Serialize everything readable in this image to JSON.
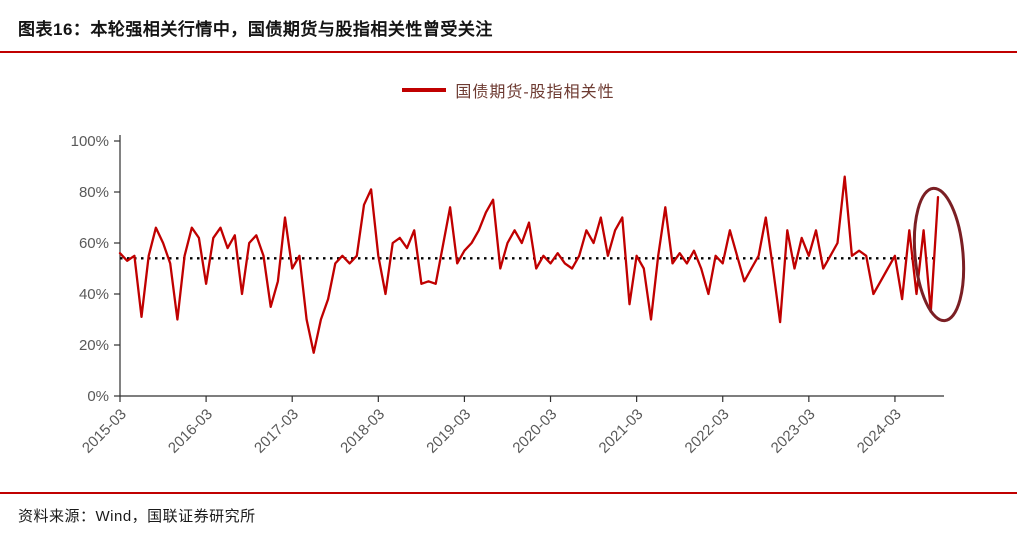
{
  "header": {
    "title": "图表16：本轮强相关行情中，国债期货与股指相关性曾受关注"
  },
  "legend": {
    "label": "国债期货-股指相关性"
  },
  "footer": {
    "source": "资料来源：Wind，国联证券研究所"
  },
  "colors": {
    "line": "#c00000",
    "divider": "#c00000",
    "avg_line": "#000000",
    "ellipse": "#7b1f24",
    "axis": "#303030",
    "axis_text": "#595959",
    "legend_text": "#6d3a31"
  },
  "chart_data": {
    "type": "line",
    "title": "图表16：本轮强相关行情中，国债期货与股指相关性曾受关注",
    "legend_position": "top-center",
    "grid": false,
    "ylim": [
      0,
      100
    ],
    "y_ticks": [
      0,
      20,
      40,
      60,
      80,
      100
    ],
    "y_tick_suffix": "%",
    "x_tick_labels": [
      "2015-03",
      "2016-03",
      "2017-03",
      "2018-03",
      "2019-03",
      "2020-03",
      "2021-03",
      "2022-03",
      "2023-03",
      "2024-03"
    ],
    "x_months_per_tick": 12,
    "x_start": "2015-03",
    "x_end": "2024-09",
    "average_line": 54,
    "highlight_last_point": true,
    "series": [
      {
        "name": "国债期货-股指相关性",
        "values": [
          56,
          53,
          55,
          31,
          55,
          66,
          60,
          52,
          30,
          55,
          66,
          62,
          44,
          62,
          66,
          58,
          63,
          40,
          60,
          63,
          55,
          35,
          45,
          70,
          50,
          55,
          30,
          17,
          30,
          38,
          52,
          55,
          52,
          55,
          75,
          81,
          55,
          40,
          60,
          62,
          58,
          65,
          44,
          45,
          44,
          59,
          74,
          52,
          57,
          60,
          65,
          72,
          77,
          50,
          60,
          65,
          60,
          68,
          50,
          55,
          52,
          56,
          52,
          50,
          55,
          65,
          60,
          70,
          55,
          65,
          70,
          36,
          55,
          50,
          30,
          55,
          74,
          52,
          56,
          52,
          57,
          50,
          40,
          55,
          52,
          65,
          55,
          45,
          50,
          55,
          70,
          50,
          29,
          65,
          50,
          62,
          55,
          65,
          50,
          55,
          60,
          86,
          55,
          57,
          55,
          40,
          45,
          50,
          55,
          38,
          65,
          40,
          65,
          33,
          78
        ]
      }
    ]
  }
}
